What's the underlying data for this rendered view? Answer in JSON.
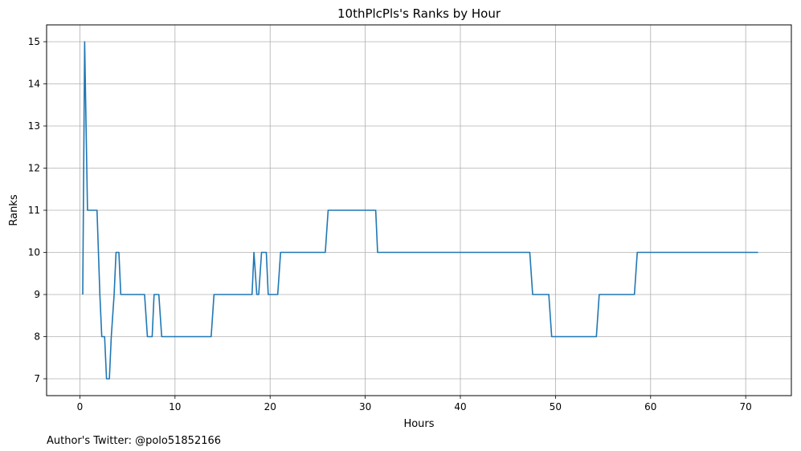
{
  "chart_data": {
    "type": "line",
    "title": "10thPlcPls's Ranks by Hour",
    "xlabel": "Hours",
    "ylabel": "Ranks",
    "xlim": [
      -3.5,
      74.8
    ],
    "ylim": [
      6.6,
      15.4
    ],
    "xticks": [
      0,
      10,
      20,
      30,
      40,
      50,
      60,
      70
    ],
    "yticks": [
      7,
      8,
      9,
      10,
      11,
      12,
      13,
      14,
      15
    ],
    "grid": true,
    "line_color": "#1f77b4",
    "series": [
      {
        "x": [
          0.3,
          0.5,
          0.8,
          1.0,
          1.3,
          1.6,
          1.8,
          2.1,
          2.3,
          2.6,
          2.8,
          3.1,
          3.3,
          3.6,
          3.8,
          4.1,
          4.3,
          4.6,
          6.8,
          7.1,
          7.3,
          7.6,
          7.8,
          8.1,
          8.3,
          8.6,
          8.8,
          9.1,
          13.6,
          13.8,
          14.1,
          18.1,
          18.3,
          18.6,
          18.8,
          19.1,
          19.3,
          19.6,
          19.8,
          20.1,
          20.8,
          21.1,
          25.8,
          26.1,
          31.1,
          31.3,
          31.6,
          47.3,
          47.6,
          49.3,
          49.6,
          54.1,
          54.3,
          54.6,
          58.3,
          58.6,
          71.3
        ],
        "y": [
          9,
          15,
          11,
          11,
          11,
          11,
          11,
          9,
          8,
          8,
          7,
          7,
          8,
          9,
          10,
          10,
          9,
          9,
          9,
          8,
          8,
          8,
          9,
          9,
          9,
          8,
          8,
          8,
          8,
          8,
          9,
          9,
          10,
          9,
          9,
          10,
          10,
          10,
          9,
          9,
          9,
          10,
          10,
          11,
          11,
          10,
          10,
          10,
          9,
          9,
          8,
          8,
          8,
          9,
          9,
          10,
          10
        ]
      }
    ]
  },
  "footer_text": "Author's Twitter: @polo51852166"
}
